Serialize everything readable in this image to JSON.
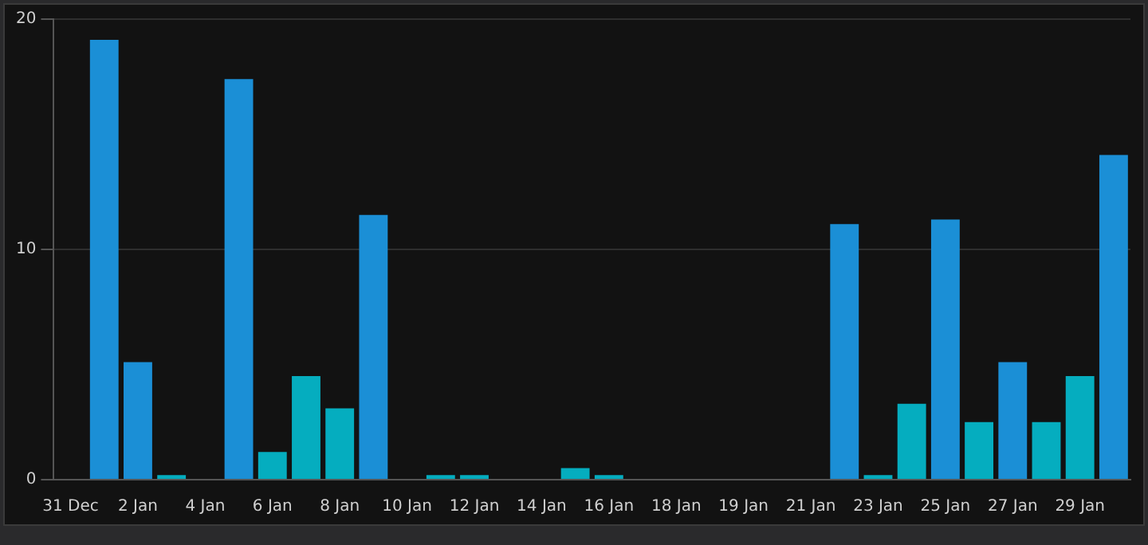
{
  "chart_data": {
    "type": "bar",
    "categories": [
      "31 Dec",
      null,
      "2 Jan",
      null,
      "4 Jan",
      null,
      "6 Jan",
      null,
      "8 Jan",
      null,
      "10 Jan",
      null,
      "12 Jan",
      null,
      "14 Jan",
      null,
      "16 Jan",
      null,
      "18 Jan",
      null,
      "19 Jan",
      null,
      "21 Jan",
      null,
      "23 Jan",
      null,
      "25 Jan",
      null,
      "27 Jan",
      null,
      "29 Jan",
      null
    ],
    "values": [
      null,
      19.1,
      5.1,
      0.2,
      null,
      17.4,
      1.2,
      4.5,
      3.1,
      11.5,
      null,
      0.2,
      0.2,
      null,
      null,
      0.5,
      0.2,
      null,
      null,
      null,
      null,
      null,
      null,
      11.1,
      0.2,
      3.3,
      11.3,
      2.5,
      5.1,
      2.5,
      4.5,
      14.1
    ],
    "colors": [
      "#1b8fd6",
      "#1b8fd6",
      "#1b8fd6",
      "#05adbf",
      "#1b8fd6",
      "#1b8fd6",
      "#05adbf",
      "#05adbf",
      "#05adbf",
      "#1b8fd6",
      "#1b8fd6",
      "#05adbf",
      "#05adbf",
      "#1b8fd6",
      "#1b8fd6",
      "#05adbf",
      "#05adbf",
      "#1b8fd6",
      "#1b8fd6",
      "#1b8fd6",
      "#1b8fd6",
      "#1b8fd6",
      "#1b8fd6",
      "#1b8fd6",
      "#05adbf",
      "#05adbf",
      "#1b8fd6",
      "#05adbf",
      "#1b8fd6",
      "#05adbf",
      "#05adbf",
      "#1b8fd6"
    ],
    "ylim": [
      0,
      20
    ],
    "yticks": [
      0,
      10,
      20
    ],
    "grid": "y",
    "legend": false
  }
}
